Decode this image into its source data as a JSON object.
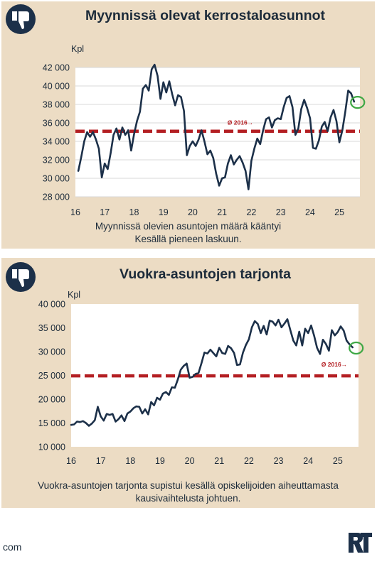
{
  "footer": {
    "text": "com"
  },
  "colors": {
    "panel_bg": "#ecdcc4",
    "line": "#1c3049",
    "avg": "#b41f23",
    "marker": "#3fa845",
    "icon_bg": "#1c3049"
  },
  "icons": {
    "panel_icon": "thumbs-down-icon",
    "logo": "rt-logo"
  },
  "chart_data": [
    {
      "type": "line",
      "title": "Myynnissä olevat kerrostaloasunnot",
      "ylabel": "Kpl",
      "xlabel": "",
      "caption_lines": [
        "Myynnissä olevien asuntojen määrä kääntyi",
        "Kesällä pieneen laskuun."
      ],
      "xlim": [
        16,
        25.7
      ],
      "ylim": [
        28000,
        42000
      ],
      "yticks": [
        28000,
        30000,
        32000,
        34000,
        36000,
        38000,
        40000,
        42000
      ],
      "ytick_labels": [
        "28 000",
        "30 000",
        "32 000",
        "34 000",
        "36 000",
        "38 000",
        "40 000",
        "42 000"
      ],
      "xticks": [
        16,
        17,
        18,
        19,
        20,
        21,
        22,
        23,
        24,
        25
      ],
      "xtick_labels": [
        "16",
        "17",
        "18",
        "19",
        "20",
        "21",
        "22",
        "23",
        "24",
        "25"
      ],
      "grid": true,
      "average": {
        "label": "Ø 2016→",
        "value": 35100
      },
      "highlight_last": true,
      "x": [
        16.1,
        16.2,
        16.3,
        16.4,
        16.5,
        16.6,
        16.7,
        16.8,
        16.9,
        17.0,
        17.1,
        17.2,
        17.3,
        17.4,
        17.5,
        17.6,
        17.7,
        17.8,
        17.9,
        18.0,
        18.1,
        18.2,
        18.3,
        18.4,
        18.5,
        18.6,
        18.7,
        18.8,
        18.9,
        19.0,
        19.1,
        19.2,
        19.3,
        19.4,
        19.5,
        19.6,
        19.7,
        19.8,
        19.9,
        20.0,
        20.1,
        20.2,
        20.3,
        20.4,
        20.5,
        20.6,
        20.7,
        20.8,
        20.9,
        21.0,
        21.1,
        21.2,
        21.3,
        21.4,
        21.5,
        21.6,
        21.7,
        21.8,
        21.9,
        22.0,
        22.1,
        22.2,
        22.3,
        22.4,
        22.5,
        22.6,
        22.7,
        22.8,
        22.9,
        23.0,
        23.1,
        23.2,
        23.3,
        23.4,
        23.5,
        23.6,
        23.7,
        23.8,
        23.9,
        24.0,
        24.1,
        24.2,
        24.3,
        24.4,
        24.5,
        24.6,
        24.7,
        24.8,
        24.9,
        25.0,
        25.1,
        25.2,
        25.3,
        25.4,
        25.5
      ],
      "values": [
        30800,
        32300,
        34000,
        35000,
        34500,
        35000,
        34200,
        33200,
        30100,
        31600,
        31000,
        32700,
        34700,
        35400,
        34200,
        35500,
        34700,
        35200,
        33000,
        34800,
        36200,
        37200,
        39700,
        40100,
        39500,
        41800,
        42300,
        41100,
        38600,
        40400,
        39300,
        40500,
        39100,
        37900,
        39000,
        38800,
        37300,
        32500,
        33500,
        34000,
        33500,
        34200,
        35200,
        34000,
        32600,
        33000,
        32200,
        30500,
        29200,
        30000,
        30100,
        31600,
        32500,
        31500,
        32000,
        32400,
        31700,
        30800,
        28800,
        31900,
        33200,
        34300,
        33700,
        35200,
        36400,
        36600,
        35500,
        36300,
        36500,
        36400,
        37700,
        38700,
        38900,
        37700,
        34700,
        35400,
        37500,
        38500,
        37600,
        36500,
        33300,
        33200,
        34100,
        35600,
        36100,
        35100,
        36600,
        37400,
        36200,
        33900,
        35200,
        37200,
        39500,
        39200,
        38300
      ]
    },
    {
      "type": "line",
      "title": "Vuokra-asuntojen tarjonta",
      "ylabel": "Kpl",
      "xlabel": "",
      "caption_lines": [
        "Vuokra-asuntojen tarjonta supistui kesällä opiskelijoiden aiheuttamasta",
        "kausivaihtelusta johtuen."
      ],
      "xlim": [
        16,
        25.7
      ],
      "ylim": [
        10000,
        40000
      ],
      "yticks": [
        10000,
        15000,
        20000,
        25000,
        30000,
        35000,
        40000
      ],
      "ytick_labels": [
        "10 000",
        "15 000",
        "20 000",
        "25 000",
        "30 000",
        "35 000",
        "40 000"
      ],
      "xticks": [
        16,
        17,
        18,
        19,
        20,
        21,
        22,
        23,
        24,
        25
      ],
      "xtick_labels": [
        "16",
        "17",
        "18",
        "19",
        "20",
        "21",
        "22",
        "23",
        "24",
        "25"
      ],
      "grid": false,
      "average": {
        "label": "Ø 2016→",
        "value": 24900
      },
      "highlight_last": true,
      "x": [
        16.0,
        16.1,
        16.2,
        16.3,
        16.4,
        16.5,
        16.6,
        16.7,
        16.8,
        16.9,
        17.0,
        17.1,
        17.2,
        17.3,
        17.4,
        17.5,
        17.6,
        17.7,
        17.8,
        17.9,
        18.0,
        18.1,
        18.2,
        18.3,
        18.4,
        18.5,
        18.6,
        18.7,
        18.8,
        18.9,
        19.0,
        19.1,
        19.2,
        19.3,
        19.4,
        19.5,
        19.6,
        19.7,
        19.8,
        19.9,
        20.0,
        20.1,
        20.2,
        20.3,
        20.4,
        20.5,
        20.6,
        20.7,
        20.8,
        20.9,
        21.0,
        21.1,
        21.2,
        21.3,
        21.4,
        21.5,
        21.6,
        21.7,
        21.8,
        21.9,
        22.0,
        22.1,
        22.2,
        22.3,
        22.4,
        22.5,
        22.6,
        22.7,
        22.8,
        22.9,
        23.0,
        23.1,
        23.2,
        23.3,
        23.4,
        23.5,
        23.6,
        23.7,
        23.8,
        23.9,
        24.0,
        24.1,
        24.2,
        24.3,
        24.4,
        24.5,
        24.6,
        24.7,
        24.8,
        24.9,
        25.0,
        25.1,
        25.2,
        25.3,
        25.4,
        25.5
      ],
      "values": [
        14600,
        14700,
        15300,
        15200,
        15400,
        15000,
        14400,
        14900,
        15600,
        18400,
        16400,
        15500,
        16900,
        16700,
        16900,
        15300,
        15800,
        16600,
        15400,
        17000,
        17400,
        18100,
        18500,
        18400,
        17000,
        17900,
        16800,
        19400,
        18700,
        20300,
        19900,
        21200,
        21500,
        20900,
        22500,
        22400,
        24100,
        26200,
        27000,
        27500,
        24500,
        24700,
        25300,
        25500,
        27600,
        29800,
        29600,
        30400,
        29700,
        29000,
        30800,
        29700,
        29500,
        31200,
        30700,
        29700,
        27200,
        27300,
        29800,
        31400,
        32600,
        35100,
        36400,
        35800,
        33900,
        35400,
        33600,
        36500,
        36300,
        35500,
        36700,
        35100,
        35900,
        36800,
        34500,
        32300,
        31300,
        34200,
        31300,
        34800,
        33900,
        35500,
        33400,
        30800,
        29500,
        32500,
        31600,
        30200,
        34500,
        33400,
        34100,
        35300,
        34400,
        32300,
        31500,
        30900
      ]
    }
  ]
}
